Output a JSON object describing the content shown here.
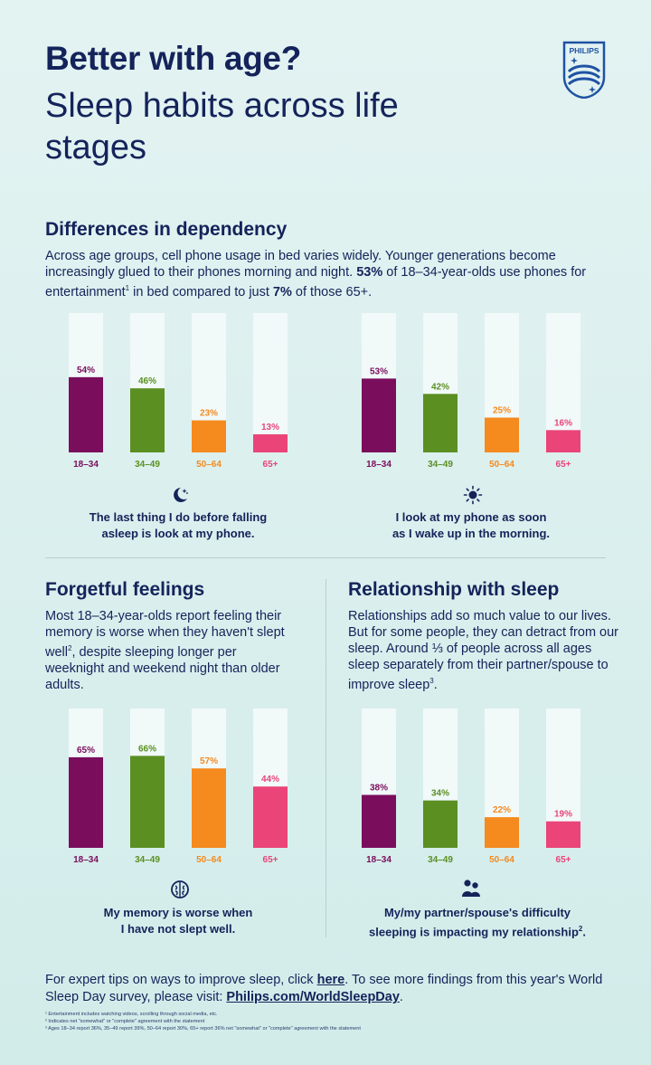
{
  "header": {
    "title": "Better with age?",
    "subtitle": "Sleep habits across life stages",
    "logo_text": "PHILIPS"
  },
  "dependency": {
    "heading": "Differences in dependency",
    "para_1": "Across age groups, cell phone usage in bed varies widely. Younger generations become increasingly glued to their phones morning and night. ",
    "para_bold_1": "53%",
    "para_2": " of 18–34-year-olds use phones for entertainment",
    "para_sup": "1",
    "para_3": " in bed compared to just ",
    "para_bold_2": "7%",
    "para_4": " of those 65+."
  },
  "memory": {
    "heading": "Forgetful feelings",
    "para_1": "Most 18–34-year-olds report feeling their memory is worse when they haven't slept well",
    "para_sup": "2",
    "para_2": ", despite sleeping longer per weeknight and weekend night than older adults."
  },
  "relationship": {
    "heading": "Relationship with sleep",
    "para_1": "Relationships add so much value to our lives. But for some people, they can detract from our sleep. Around ⅓ of people across all ages sleep separately from their partner/spouse to improve sleep",
    "para_sup": "3",
    "para_2": "."
  },
  "chart_data": [
    {
      "type": "bar",
      "categories": [
        "18–34",
        "34–49",
        "50–64",
        "65+"
      ],
      "values": [
        54,
        46,
        23,
        13
      ],
      "data_labels": [
        "54%",
        "46%",
        "23%",
        "13%"
      ],
      "ylim": [
        0,
        100
      ],
      "caption_line_1": "The last thing I do before falling",
      "caption_line_2": "asleep is look at my phone.",
      "icon": "moon-stars-icon"
    },
    {
      "type": "bar",
      "categories": [
        "18–34",
        "34–49",
        "50–64",
        "65+"
      ],
      "values": [
        53,
        42,
        25,
        16
      ],
      "data_labels": [
        "53%",
        "42%",
        "25%",
        "16%"
      ],
      "ylim": [
        0,
        100
      ],
      "caption_line_1": "I look at my phone as soon",
      "caption_line_2": "as I wake up in the morning.",
      "icon": "sun-icon"
    },
    {
      "type": "bar",
      "categories": [
        "18–34",
        "34–49",
        "50–64",
        "65+"
      ],
      "values": [
        65,
        66,
        57,
        44
      ],
      "data_labels": [
        "65%",
        "66%",
        "57%",
        "44%"
      ],
      "ylim": [
        0,
        100
      ],
      "caption_line_1": "My memory is worse when",
      "caption_line_2": "I have not slept well.",
      "icon": "brain-icon"
    },
    {
      "type": "bar",
      "categories": [
        "18–34",
        "34–49",
        "50–64",
        "65+"
      ],
      "values": [
        38,
        34,
        22,
        19
      ],
      "data_labels": [
        "38%",
        "34%",
        "22%",
        "19%"
      ],
      "ylim": [
        0,
        100
      ],
      "caption_line_1": "My/my partner/spouse's difficulty",
      "caption_line_2": "sleeping is impacting my relationship",
      "caption_sup": "2",
      "caption_end": ".",
      "icon": "couple-icon"
    }
  ],
  "colors": {
    "series": [
      "#7a0d5c",
      "#5b8f22",
      "#f58a1f",
      "#ea4478"
    ],
    "bar_track": "#f1f9f9",
    "text": "#14235a"
  },
  "footer": {
    "text_1": "For expert tips on ways to improve sleep, click ",
    "link_here": "here",
    "text_2": ". To see more findings from this year's World Sleep Day survey, please visit: ",
    "link_url": "Philips.com/WorldSleepDay",
    "text_3": "."
  },
  "footnotes": [
    "¹ Entertainment includes watching videos, scrolling through social media, etc.",
    "² Indicates net \"somewhat\" or \"complete\" agreement with the statement",
    "³ Ages 18–34 report 36%, 35–49 report 39%, 50–64 report 30%, 65+ report 36% net \"somewhat\" or \"complete\" agreement with the statement"
  ]
}
